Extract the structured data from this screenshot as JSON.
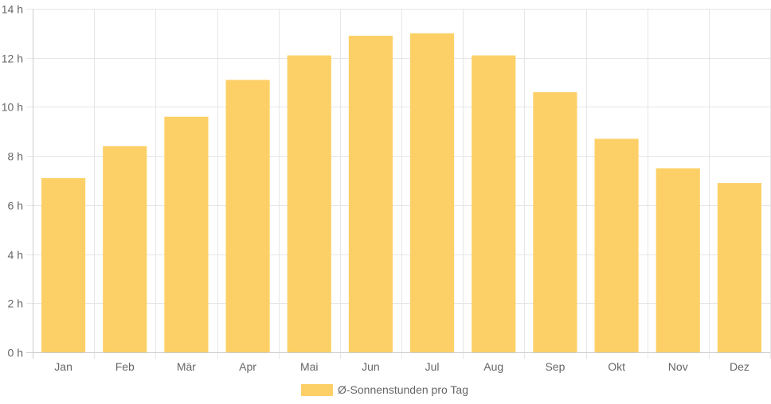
{
  "chart_data": {
    "type": "bar",
    "categories": [
      "Jan",
      "Feb",
      "Mär",
      "Apr",
      "Mai",
      "Jun",
      "Jul",
      "Aug",
      "Sep",
      "Okt",
      "Nov",
      "Dez"
    ],
    "series": [
      {
        "name": "Ø-Sonnenstunden pro Tag",
        "values": [
          7.1,
          8.4,
          9.6,
          11.1,
          12.1,
          12.9,
          13.0,
          12.1,
          10.6,
          8.7,
          7.5,
          6.9
        ],
        "color": "#fdd067"
      }
    ],
    "y_ticks": [
      "0 h",
      "2 h",
      "4 h",
      "6 h",
      "8 h",
      "10 h",
      "12 h",
      "14 h"
    ],
    "ylim": [
      0,
      14
    ],
    "grid": true,
    "legend_position": "bottom",
    "colors": {
      "grid": "#e6e6e6",
      "axis": "#cccccc",
      "text": "#666666"
    }
  }
}
